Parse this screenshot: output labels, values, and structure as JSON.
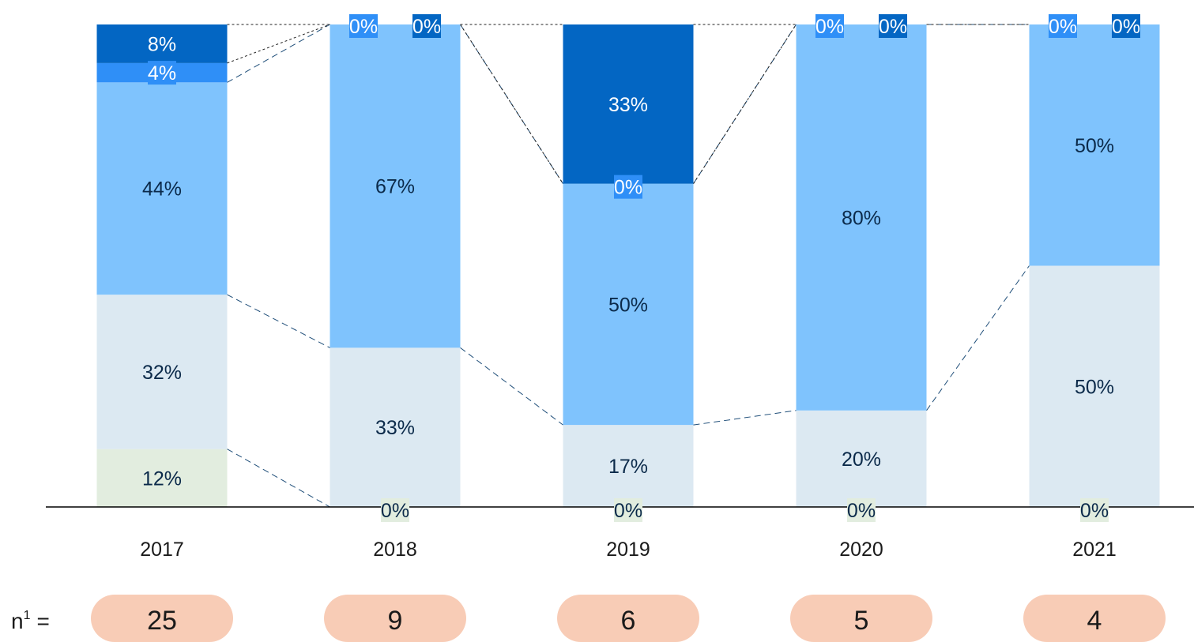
{
  "chart_data": {
    "type": "bar",
    "stacked": true,
    "categories": [
      "2017",
      "2018",
      "2019",
      "2020",
      "2021"
    ],
    "series": [
      {
        "color": "#e2eddf",
        "values": [
          12,
          0,
          0,
          0,
          0
        ],
        "labels": [
          "12%",
          "0%",
          "0%",
          "0%",
          "0%"
        ]
      },
      {
        "color": "#dce9f2",
        "values": [
          32,
          33,
          17,
          20,
          50
        ],
        "labels": [
          "32%",
          "33%",
          "17%",
          "20%",
          "50%"
        ]
      },
      {
        "color": "#7fc3fd",
        "values": [
          44,
          67,
          50,
          80,
          50
        ],
        "labels": [
          "44%",
          "67%",
          "50%",
          "80%",
          "50%"
        ]
      },
      {
        "color": "#2f8ff7",
        "values": [
          4,
          0,
          0,
          0,
          0
        ],
        "labels": [
          "4%",
          "0%",
          "0%",
          "0%",
          "0%"
        ]
      },
      {
        "color": "#0366c3",
        "values": [
          8,
          0,
          33,
          0,
          0
        ],
        "labels": [
          "8%",
          "0%",
          "33%",
          "0%",
          "0%"
        ]
      }
    ],
    "ylim": [
      0,
      100
    ],
    "legend": "none",
    "grid": false,
    "n_prefix": "n",
    "n_superscript": "1",
    "n_equals": "=",
    "n_values": [
      "25",
      "9",
      "6",
      "5",
      "4"
    ]
  }
}
